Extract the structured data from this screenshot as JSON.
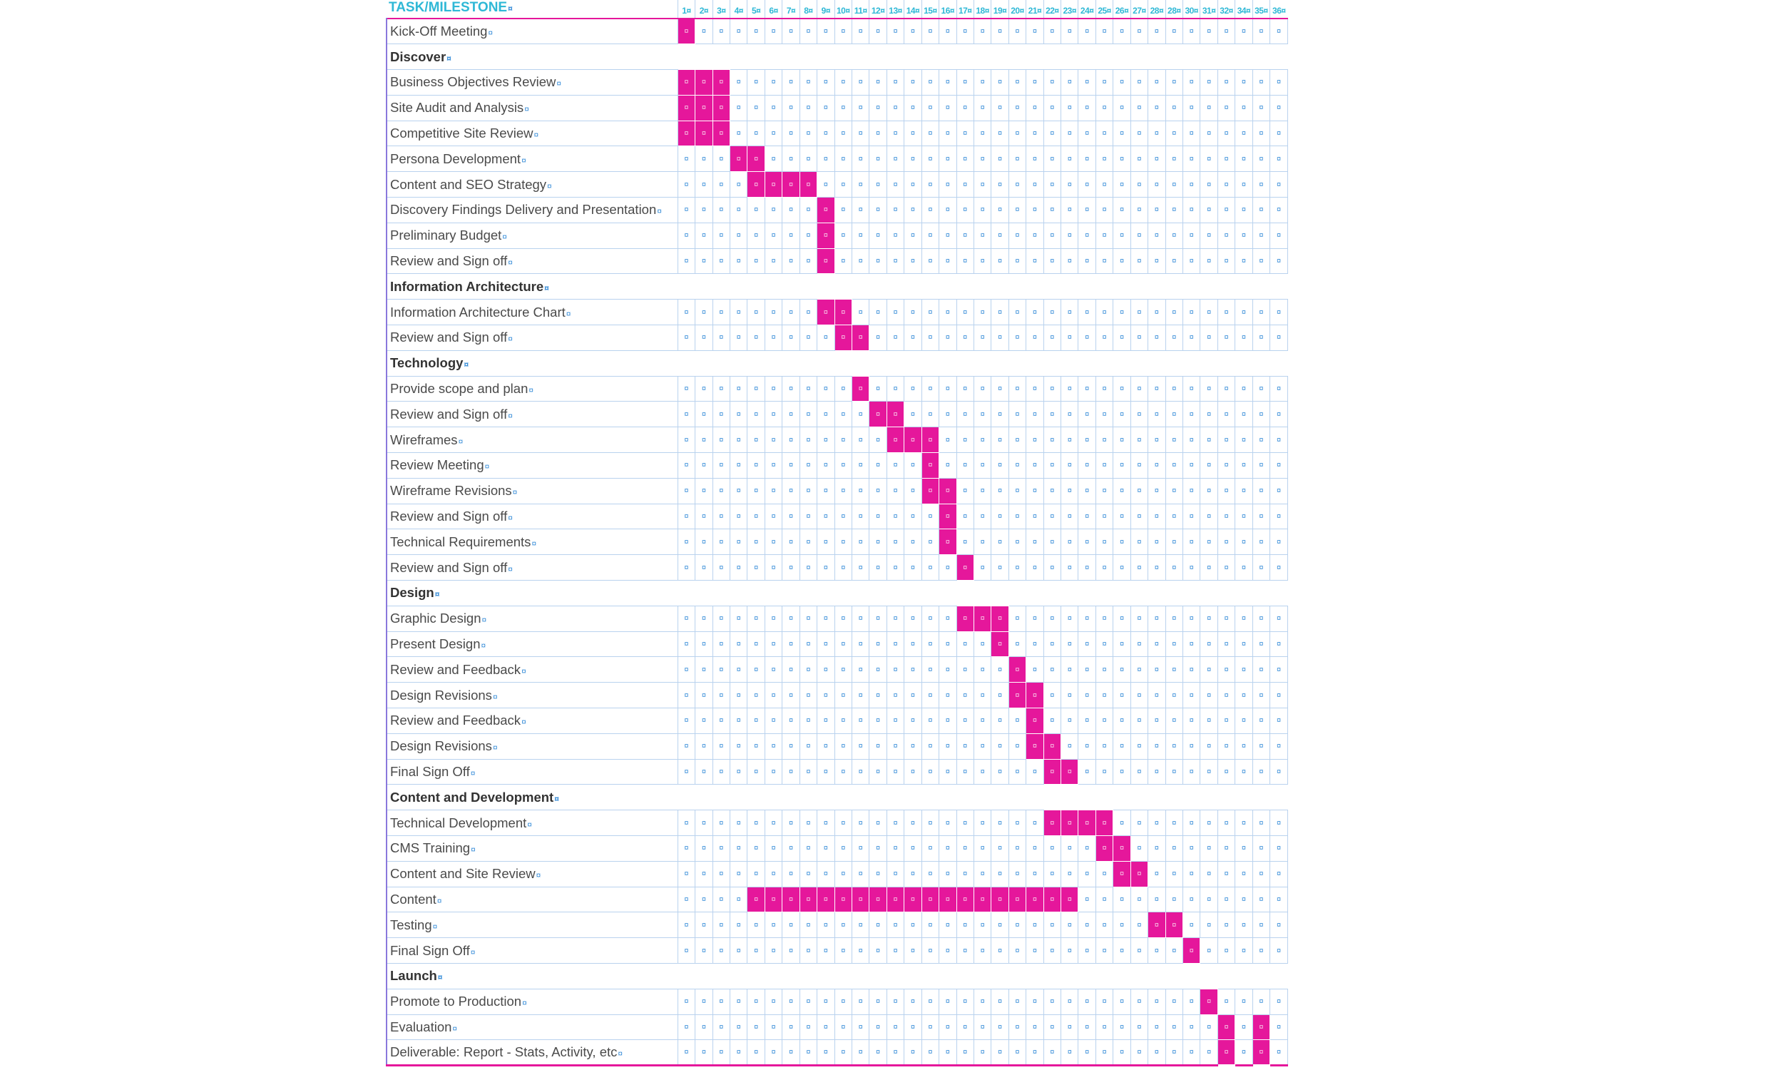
{
  "header": {
    "task_label": "TASK/MILESTONE",
    "cell_mark": "¤"
  },
  "accent_color": "#e5179b",
  "weeks": [
    "1",
    "2",
    "3",
    "4",
    "5",
    "6",
    "7",
    "8",
    "9",
    "10",
    "11",
    "12",
    "13",
    "14",
    "15",
    "16",
    "17",
    "18",
    "19",
    "20",
    "21",
    "22",
    "23",
    "24",
    "25",
    "26",
    "27",
    "28",
    "28",
    "30",
    "31",
    "32",
    "34",
    "35",
    "36"
  ],
  "rows": [
    {
      "name": "Kick-Off Meeting",
      "type": "task",
      "active": [
        1
      ]
    },
    {
      "name": "Discover",
      "type": "phase"
    },
    {
      "name": "Business Objectives Review",
      "type": "task",
      "active": [
        1,
        2,
        3
      ]
    },
    {
      "name": "Site Audit and Analysis",
      "type": "task",
      "active": [
        1,
        2,
        3
      ]
    },
    {
      "name": "Competitive Site Review",
      "type": "task",
      "active": [
        1,
        2,
        3
      ]
    },
    {
      "name": "Persona Development",
      "type": "task",
      "active": [
        4,
        5
      ]
    },
    {
      "name": "Content and SEO Strategy",
      "type": "task",
      "active": [
        5,
        6,
        7,
        8
      ]
    },
    {
      "name": "Discovery Findings Delivery and Presentation",
      "type": "task",
      "active": [
        9
      ]
    },
    {
      "name": "Preliminary Budget",
      "type": "task",
      "active": [
        9
      ]
    },
    {
      "name": "Review and Sign off",
      "type": "task",
      "active": [
        9
      ]
    },
    {
      "name": "Information Architecture",
      "type": "phase"
    },
    {
      "name": "Information Architecture Chart",
      "type": "task",
      "active": [
        9,
        10
      ]
    },
    {
      "name": "Review and Sign off",
      "type": "task",
      "active": [
        10,
        11
      ]
    },
    {
      "name": "Technology",
      "type": "phase"
    },
    {
      "name": "Provide scope and plan",
      "type": "task",
      "active": [
        11
      ]
    },
    {
      "name": "Review and Sign off",
      "type": "task",
      "active": [
        12,
        13
      ]
    },
    {
      "name": "Wireframes",
      "type": "task",
      "active": [
        13,
        14,
        15
      ]
    },
    {
      "name": "Review Meeting",
      "type": "task",
      "active": [
        15
      ]
    },
    {
      "name": "Wireframe Revisions",
      "type": "task",
      "active": [
        15,
        16
      ]
    },
    {
      "name": "Review and Sign off",
      "type": "task",
      "active": [
        16
      ]
    },
    {
      "name": "Technical Requirements",
      "type": "task",
      "active": [
        16
      ]
    },
    {
      "name": "Review and Sign off",
      "type": "task",
      "active": [
        17
      ]
    },
    {
      "name": "Design",
      "type": "phase"
    },
    {
      "name": "Graphic Design",
      "type": "task",
      "active": [
        17,
        18,
        19
      ]
    },
    {
      "name": "Present Design",
      "type": "task",
      "active": [
        19
      ]
    },
    {
      "name": "Review and Feedback",
      "type": "task",
      "active": [
        20
      ]
    },
    {
      "name": "Design Revisions",
      "type": "task",
      "active": [
        20,
        21
      ]
    },
    {
      "name": "Review and Feedback",
      "type": "task",
      "active": [
        21
      ]
    },
    {
      "name": "Design Revisions",
      "type": "task",
      "active": [
        21,
        22
      ]
    },
    {
      "name": "Final Sign Off",
      "type": "task",
      "active": [
        22,
        23
      ]
    },
    {
      "name": "Content and Development",
      "type": "phase"
    },
    {
      "name": "Technical Development",
      "type": "task",
      "active": [
        22,
        23,
        24,
        25
      ]
    },
    {
      "name": "CMS Training",
      "type": "task",
      "active": [
        25,
        26
      ]
    },
    {
      "name": "Content and Site Review",
      "type": "task",
      "active": [
        26,
        27
      ]
    },
    {
      "name": "Content",
      "type": "task",
      "active": [
        5,
        6,
        7,
        8,
        9,
        10,
        11,
        12,
        13,
        14,
        15,
        16,
        17,
        18,
        19,
        20,
        21,
        22,
        23
      ]
    },
    {
      "name": "Testing",
      "type": "task",
      "active": [
        28,
        29
      ]
    },
    {
      "name": "Final Sign Off",
      "type": "task",
      "active": [
        30
      ]
    },
    {
      "name": "Launch",
      "type": "phase"
    },
    {
      "name": "Promote to Production",
      "type": "task",
      "active": [
        31
      ]
    },
    {
      "name": "Evaluation",
      "type": "task",
      "active": [
        32,
        34
      ]
    },
    {
      "name": "Deliverable: Report - Stats, Activity, etc",
      "type": "task",
      "active": [
        32,
        34
      ]
    }
  ]
}
